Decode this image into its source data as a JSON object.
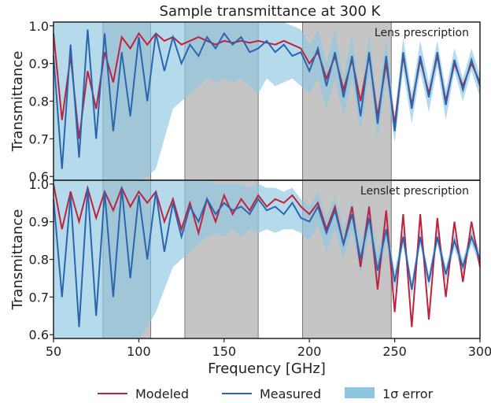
{
  "chart_data": {
    "type": "line",
    "title": "Sample transmittance at 300 K",
    "xlabel": "Frequency [GHz]",
    "xlim": [
      50,
      300
    ],
    "x_ticks": [
      50,
      100,
      150,
      200,
      250,
      300
    ],
    "colors": {
      "modeled": "#c0223b",
      "measured": "#2a66b0",
      "error": "#8ec6e0",
      "band": "#8c8c8c"
    },
    "legend": {
      "position": "bottom-center",
      "entries": [
        "Modeled",
        "Measured",
        "1σ error"
      ]
    },
    "bands_ghz": [
      [
        79,
        107
      ],
      [
        127,
        170
      ],
      [
        196,
        248
      ]
    ],
    "panels": [
      {
        "label": "Lens prescription",
        "ylabel": "Transmittance",
        "ylim": [
          0.59,
          1.01
        ],
        "y_ticks": [
          0.6,
          0.7,
          0.8,
          0.9,
          1.0
        ],
        "series": [
          {
            "name": "Modeled",
            "x": [
              50,
              55,
              60,
              65,
              70,
              75,
              80,
              85,
              90,
              95,
              100,
              105,
              110,
              115,
              120,
              125,
              130,
              135,
              140,
              145,
              150,
              155,
              160,
              165,
              170,
              175,
              180,
              185,
              190,
              195,
              200,
              205,
              210,
              215,
              220,
              225,
              230,
              235,
              240,
              245,
              250,
              255,
              260,
              265,
              270,
              275,
              280,
              285,
              290,
              295,
              300
            ],
            "values": [
              0.98,
              0.75,
              0.92,
              0.7,
              0.88,
              0.78,
              0.93,
              0.85,
              0.97,
              0.94,
              0.98,
              0.95,
              0.98,
              0.96,
              0.97,
              0.95,
              0.96,
              0.97,
              0.96,
              0.95,
              0.96,
              0.955,
              0.96,
              0.955,
              0.96,
              0.955,
              0.95,
              0.96,
              0.95,
              0.94,
              0.9,
              0.93,
              0.86,
              0.92,
              0.83,
              0.91,
              0.8,
              0.92,
              0.76,
              0.9,
              0.74,
              0.92,
              0.79,
              0.91,
              0.82,
              0.92,
              0.8,
              0.9,
              0.84,
              0.9,
              0.85
            ]
          },
          {
            "name": "Measured",
            "x": [
              50,
              55,
              60,
              65,
              70,
              75,
              80,
              85,
              90,
              95,
              100,
              105,
              110,
              115,
              120,
              125,
              130,
              135,
              140,
              145,
              150,
              155,
              160,
              165,
              170,
              175,
              180,
              185,
              190,
              195,
              200,
              205,
              210,
              215,
              220,
              225,
              230,
              235,
              240,
              245,
              250,
              255,
              260,
              265,
              270,
              275,
              280,
              285,
              290,
              295,
              300
            ],
            "values": [
              0.92,
              0.62,
              0.95,
              0.65,
              0.99,
              0.7,
              0.98,
              0.72,
              0.93,
              0.76,
              0.97,
              0.8,
              0.98,
              0.88,
              0.97,
              0.9,
              0.95,
              0.92,
              0.97,
              0.94,
              0.98,
              0.95,
              0.97,
              0.93,
              0.94,
              0.96,
              0.93,
              0.95,
              0.92,
              0.93,
              0.88,
              0.94,
              0.84,
              0.93,
              0.81,
              0.92,
              0.76,
              0.93,
              0.74,
              0.92,
              0.72,
              0.93,
              0.78,
              0.92,
              0.81,
              0.93,
              0.79,
              0.91,
              0.83,
              0.91,
              0.84
            ]
          }
        ],
        "error_band": {
          "x": [
            50,
            55,
            60,
            65,
            70,
            75,
            80,
            85,
            90,
            95,
            100,
            105,
            110,
            115,
            120,
            125,
            130,
            135,
            140,
            145,
            150,
            155,
            160,
            165,
            170,
            175,
            180,
            185,
            190,
            195,
            200,
            205,
            210,
            215,
            220,
            225,
            230,
            235,
            240,
            245,
            250,
            255,
            260,
            265,
            270,
            275,
            280,
            285,
            290,
            295,
            300
          ],
          "low": [
            0.59,
            0.59,
            0.59,
            0.59,
            0.59,
            0.59,
            0.59,
            0.59,
            0.59,
            0.59,
            0.59,
            0.6,
            0.62,
            0.7,
            0.78,
            0.8,
            0.82,
            0.84,
            0.86,
            0.85,
            0.86,
            0.85,
            0.86,
            0.84,
            0.82,
            0.86,
            0.84,
            0.85,
            0.86,
            0.84,
            0.82,
            0.86,
            0.78,
            0.86,
            0.76,
            0.86,
            0.72,
            0.87,
            0.7,
            0.86,
            0.69,
            0.88,
            0.74,
            0.88,
            0.77,
            0.89,
            0.75,
            0.88,
            0.8,
            0.88,
            0.81
          ],
          "high": [
            1.01,
            1.01,
            1.01,
            1.01,
            1.01,
            1.01,
            1.01,
            1.01,
            1.01,
            1.01,
            1.01,
            1.01,
            1.01,
            1.01,
            1.01,
            1.01,
            1.01,
            1.01,
            1.01,
            1.01,
            1.01,
            1.01,
            1.01,
            1.01,
            1.01,
            1.01,
            1.01,
            1.01,
            1.0,
            0.99,
            0.95,
            0.99,
            0.9,
            0.99,
            0.86,
            0.98,
            0.8,
            0.98,
            0.78,
            0.97,
            0.76,
            0.97,
            0.82,
            0.96,
            0.85,
            0.96,
            0.83,
            0.94,
            0.86,
            0.94,
            0.87
          ]
        }
      },
      {
        "label": "Lenslet prescription",
        "ylabel": "Transmittance",
        "ylim": [
          0.59,
          1.01
        ],
        "y_ticks": [
          0.6,
          0.7,
          0.8,
          0.9,
          1.0
        ],
        "series": [
          {
            "name": "Modeled",
            "x": [
              50,
              55,
              60,
              65,
              70,
              75,
              80,
              85,
              90,
              95,
              100,
              105,
              110,
              115,
              120,
              125,
              130,
              135,
              140,
              145,
              150,
              155,
              160,
              165,
              170,
              175,
              180,
              185,
              190,
              195,
              200,
              205,
              210,
              215,
              220,
              225,
              230,
              235,
              240,
              245,
              250,
              255,
              260,
              265,
              270,
              275,
              280,
              285,
              290,
              295,
              300
            ],
            "values": [
              1.0,
              0.88,
              0.98,
              0.9,
              0.99,
              0.91,
              0.98,
              0.93,
              0.99,
              0.94,
              0.98,
              0.95,
              0.98,
              0.9,
              0.96,
              0.88,
              0.95,
              0.87,
              0.96,
              0.9,
              0.97,
              0.92,
              0.96,
              0.93,
              0.97,
              0.94,
              0.96,
              0.95,
              0.97,
              0.94,
              0.92,
              0.95,
              0.88,
              0.94,
              0.84,
              0.94,
              0.78,
              0.94,
              0.72,
              0.93,
              0.66,
              0.92,
              0.62,
              0.92,
              0.64,
              0.91,
              0.7,
              0.9,
              0.74,
              0.9,
              0.78
            ]
          },
          {
            "name": "Measured",
            "x": [
              50,
              55,
              60,
              65,
              70,
              75,
              80,
              85,
              90,
              95,
              100,
              105,
              110,
              115,
              120,
              125,
              130,
              135,
              140,
              145,
              150,
              155,
              160,
              165,
              170,
              175,
              180,
              185,
              190,
              195,
              200,
              205,
              210,
              215,
              220,
              225,
              230,
              235,
              240,
              245,
              250,
              255,
              260,
              265,
              270,
              275,
              280,
              285,
              290,
              295,
              300
            ],
            "values": [
              0.96,
              0.7,
              0.97,
              0.62,
              0.99,
              0.65,
              0.98,
              0.7,
              0.99,
              0.75,
              0.97,
              0.8,
              0.98,
              0.82,
              0.95,
              0.86,
              0.94,
              0.9,
              0.96,
              0.92,
              0.95,
              0.93,
              0.94,
              0.92,
              0.96,
              0.93,
              0.94,
              0.92,
              0.95,
              0.91,
              0.9,
              0.94,
              0.87,
              0.93,
              0.84,
              0.92,
              0.8,
              0.91,
              0.77,
              0.88,
              0.74,
              0.86,
              0.72,
              0.86,
              0.74,
              0.86,
              0.76,
              0.85,
              0.78,
              0.86,
              0.8
            ]
          }
        ],
        "error_band": {
          "x": [
            50,
            55,
            60,
            65,
            70,
            75,
            80,
            85,
            90,
            95,
            100,
            105,
            110,
            115,
            120,
            125,
            130,
            135,
            140,
            145,
            150,
            155,
            160,
            165,
            170,
            175,
            180,
            185,
            190,
            195,
            200,
            205,
            210,
            215,
            220,
            225,
            230,
            235,
            240,
            245,
            250,
            255,
            260,
            265,
            270,
            275,
            280,
            285,
            290,
            295,
            300
          ],
          "low": [
            0.59,
            0.59,
            0.59,
            0.59,
            0.59,
            0.59,
            0.59,
            0.59,
            0.59,
            0.59,
            0.59,
            0.62,
            0.66,
            0.72,
            0.78,
            0.8,
            0.82,
            0.84,
            0.86,
            0.87,
            0.86,
            0.88,
            0.86,
            0.88,
            0.87,
            0.88,
            0.87,
            0.88,
            0.88,
            0.87,
            0.85,
            0.89,
            0.82,
            0.88,
            0.8,
            0.88,
            0.76,
            0.87,
            0.73,
            0.85,
            0.71,
            0.84,
            0.7,
            0.84,
            0.72,
            0.84,
            0.74,
            0.83,
            0.76,
            0.84,
            0.78
          ],
          "high": [
            1.01,
            1.01,
            1.01,
            1.01,
            1.01,
            1.01,
            1.01,
            1.01,
            1.01,
            1.01,
            1.01,
            1.01,
            1.01,
            1.01,
            1.01,
            1.01,
            1.01,
            1.01,
            1.01,
            1.0,
            1.0,
            1.0,
            1.0,
            0.99,
            1.0,
            0.99,
            0.99,
            0.98,
            0.99,
            0.96,
            0.94,
            0.98,
            0.91,
            0.97,
            0.88,
            0.96,
            0.84,
            0.95,
            0.81,
            0.91,
            0.77,
            0.88,
            0.74,
            0.88,
            0.76,
            0.88,
            0.78,
            0.87,
            0.8,
            0.88,
            0.82
          ]
        }
      }
    ]
  }
}
